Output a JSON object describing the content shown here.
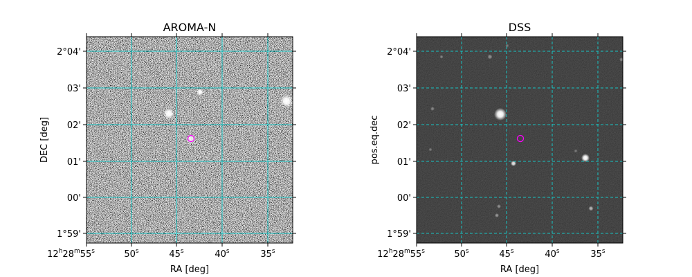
{
  "panels": [
    {
      "id": "aroma",
      "title": "AROMA-N",
      "xlabel": "RA [deg]",
      "ylabel": "DEC [deg]",
      "grid_style": "solid",
      "image_style": "noisy"
    },
    {
      "id": "dss",
      "title": "DSS",
      "xlabel": "RA [deg]",
      "ylabel": "pos.eq.dec",
      "grid_style": "dashed",
      "image_style": "dark"
    }
  ],
  "ticks": {
    "x": [
      {
        "main": "12",
        "sup1": "h",
        "mid": "28",
        "sup2": "m",
        "tail": "55",
        "sup3": "s"
      },
      {
        "main": "50",
        "sup": "s"
      },
      {
        "main": "45",
        "sup": "s"
      },
      {
        "main": "40",
        "sup": "s"
      },
      {
        "main": "35",
        "sup": "s"
      }
    ],
    "y": [
      "2°04'",
      "03'",
      "02'",
      "01'",
      "00'",
      "1°59'"
    ]
  },
  "colors": {
    "grid": "#17c4c4",
    "marker": "#ff00ff"
  }
}
